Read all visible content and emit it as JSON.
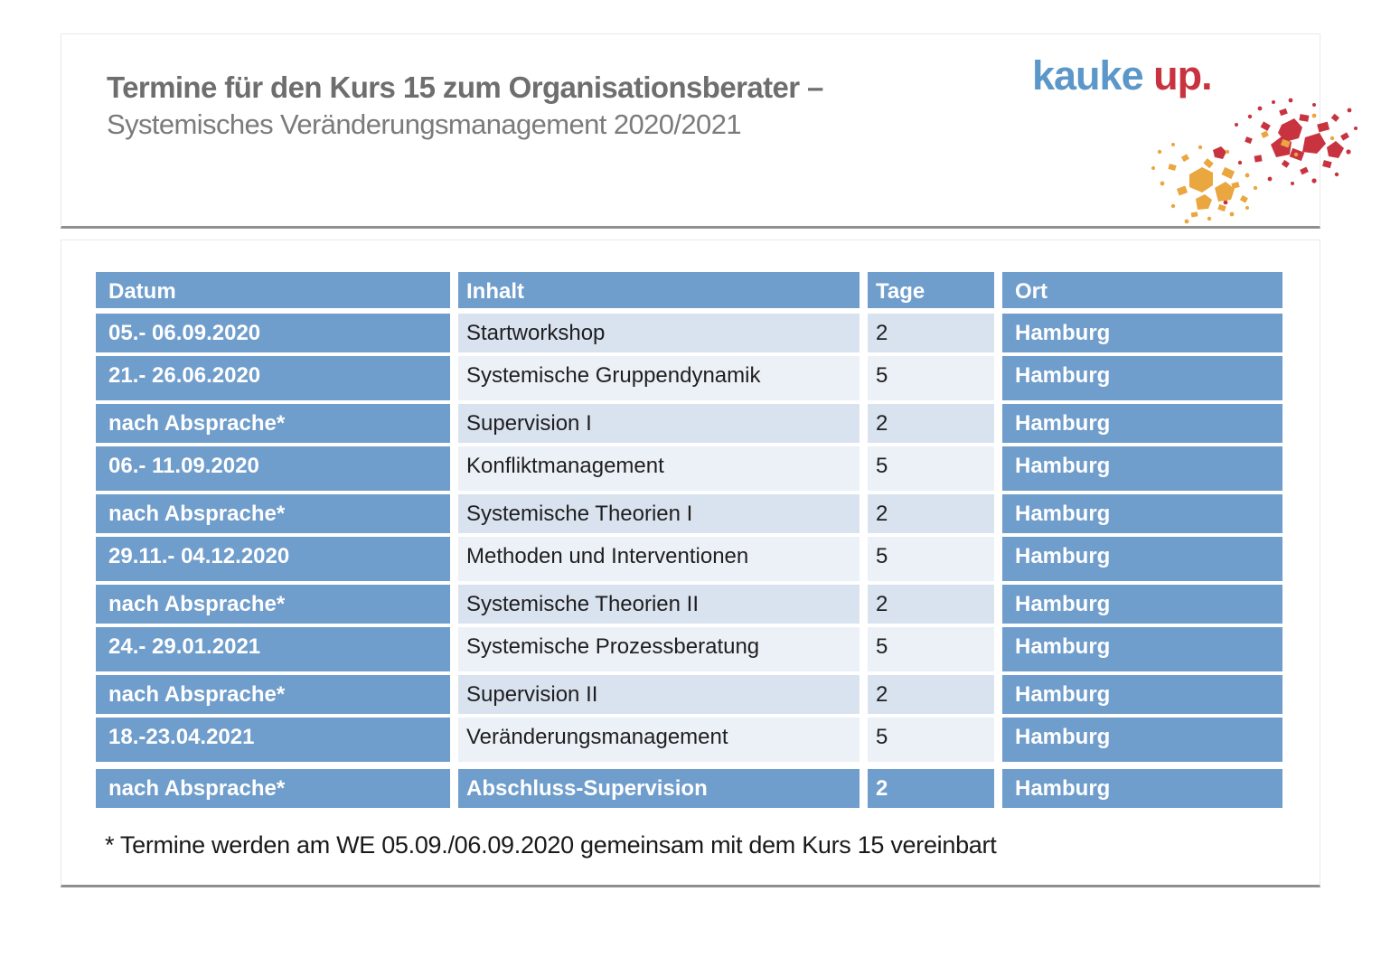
{
  "header": {
    "title_line1": "Termine für den Kurs 15 zum Organisationsberater –",
    "title_line2": "Systemisches Veränderungsmanagement 2020/2021"
  },
  "logo": {
    "text_blue": "kauke",
    "text_red": "up.",
    "color_blue": "#5b97c9",
    "color_red": "#c8333f",
    "color_gold": "#eaa63f"
  },
  "table": {
    "headers": [
      "Datum",
      "Inhalt",
      "Tage",
      "Ort"
    ],
    "header_bg": "#6f9dcc",
    "band_color_dark": "#d9e2ef",
    "band_color_light": "#ecf1f8",
    "rows": [
      {
        "datum": "05.- 06.09.2020",
        "inhalt": "Startworkshop",
        "tage": "2",
        "ort": "Hamburg",
        "highlight": false
      },
      {
        "datum": "21.- 26.06.2020",
        "inhalt": "Systemische Gruppendynamik",
        "tage": "5",
        "ort": "Hamburg",
        "highlight": false
      },
      {
        "datum": "nach Absprache*",
        "inhalt": "Supervision I",
        "tage": "2",
        "ort": "Hamburg",
        "highlight": false
      },
      {
        "datum": "06.- 11.09.2020",
        "inhalt": "Konfliktmanagement",
        "tage": "5",
        "ort": "Hamburg",
        "highlight": false
      },
      {
        "datum": "nach Absprache*",
        "inhalt": "Systemische Theorien I",
        "tage": "2",
        "ort": "Hamburg",
        "highlight": false
      },
      {
        "datum": "29.11.- 04.12.2020",
        "inhalt": "Methoden und Interventionen",
        "tage": "5",
        "ort": "Hamburg",
        "highlight": false
      },
      {
        "datum": "nach Absprache*",
        "inhalt": "Systemische Theorien II",
        "tage": "2",
        "ort": "Hamburg",
        "highlight": false
      },
      {
        "datum": "24.- 29.01.2021",
        "inhalt": "Systemische Prozessberatung",
        "tage": "5",
        "ort": "Hamburg",
        "highlight": false
      },
      {
        "datum": "nach Absprache*",
        "inhalt": "Supervision II",
        "tage": "2",
        "ort": "Hamburg",
        "highlight": false
      },
      {
        "datum": "18.-23.04.2021",
        "inhalt": "Veränderungsmanagement",
        "tage": "5",
        "ort": "Hamburg",
        "highlight": false
      },
      {
        "datum": "nach Absprache*",
        "inhalt": "Abschluss-Supervision",
        "tage": "2",
        "ort": "Hamburg",
        "highlight": true
      }
    ]
  },
  "footnote": {
    "text": "* Termine werden am WE 05.09./06.09.2020 gemeinsam mit dem Kurs 15 vereinbart"
  }
}
